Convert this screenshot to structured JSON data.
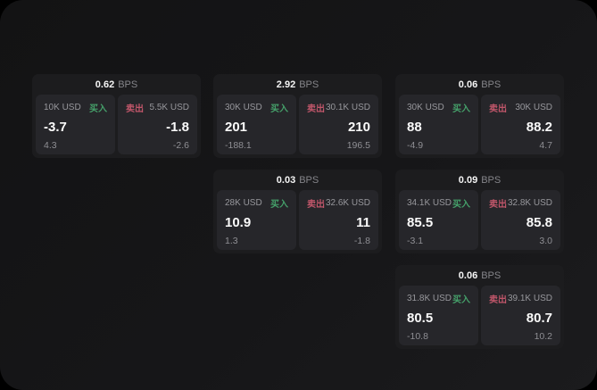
{
  "labels": {
    "bps_unit": "BPS",
    "buy": "买入",
    "sell": "卖出"
  },
  "colors": {
    "background": "#000000",
    "window": "#161618",
    "card": "#1c1c1e",
    "panel": "#26262a",
    "buy_accent": "#45a06a",
    "sell_accent": "#c0566a",
    "primary_text": "#fafafa",
    "muted_text": "#97979c"
  },
  "cards": [
    {
      "bps": "0.62",
      "buy": {
        "size": "10K USD",
        "price": "-3.7",
        "sub": "4.3"
      },
      "sell": {
        "size": "5.5K USD",
        "price": "-1.8",
        "sub": "-2.6"
      }
    },
    {
      "bps": "2.92",
      "buy": {
        "size": "30K USD",
        "price": "201",
        "sub": "-188.1"
      },
      "sell": {
        "size": "30.1K USD",
        "price": "210",
        "sub": "196.5"
      }
    },
    {
      "bps": "0.06",
      "buy": {
        "size": "30K USD",
        "price": "88",
        "sub": "-4.9"
      },
      "sell": {
        "size": "30K USD",
        "price": "88.2",
        "sub": "4.7"
      }
    },
    {
      "bps": "0.03",
      "buy": {
        "size": "28K USD",
        "price": "10.9",
        "sub": "1.3"
      },
      "sell": {
        "size": "32.6K USD",
        "price": "11",
        "sub": "-1.8"
      }
    },
    {
      "bps": "0.09",
      "buy": {
        "size": "34.1K USD",
        "price": "85.5",
        "sub": "-3.1"
      },
      "sell": {
        "size": "32.8K USD",
        "price": "85.8",
        "sub": "3.0"
      }
    },
    {
      "bps": "0.06",
      "buy": {
        "size": "31.8K USD",
        "price": "80.5",
        "sub": "-10.8"
      },
      "sell": {
        "size": "39.1K USD",
        "price": "80.7",
        "sub": "10.2"
      }
    }
  ]
}
